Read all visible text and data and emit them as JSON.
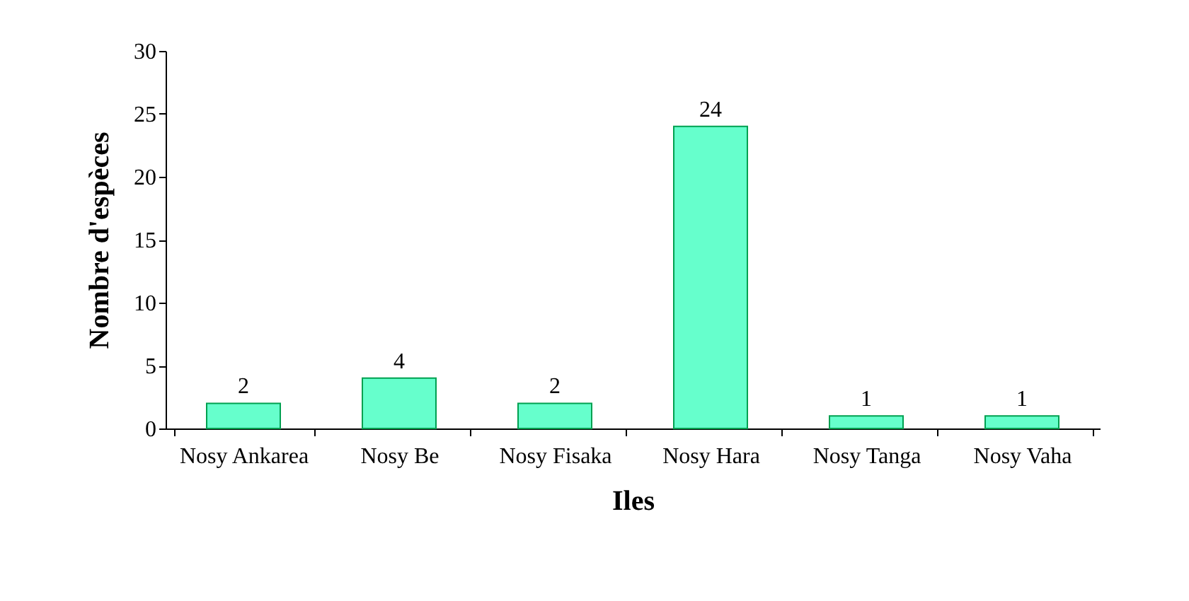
{
  "chart_data": {
    "type": "bar",
    "xlabel": "Iles",
    "ylabel": "Nombre d'espèces",
    "categories": [
      "Nosy Ankarea",
      "Nosy Be",
      "Nosy Fisaka",
      "Nosy Hara",
      "Nosy Tanga",
      "Nosy Vaha"
    ],
    "values": [
      2,
      4,
      2,
      24,
      1,
      1
    ],
    "color": "#66ffcc",
    "ylim": [
      0,
      30
    ],
    "yticks": [
      0,
      5,
      10,
      15,
      20,
      25,
      30
    ],
    "grid": false,
    "data_labels": true
  }
}
